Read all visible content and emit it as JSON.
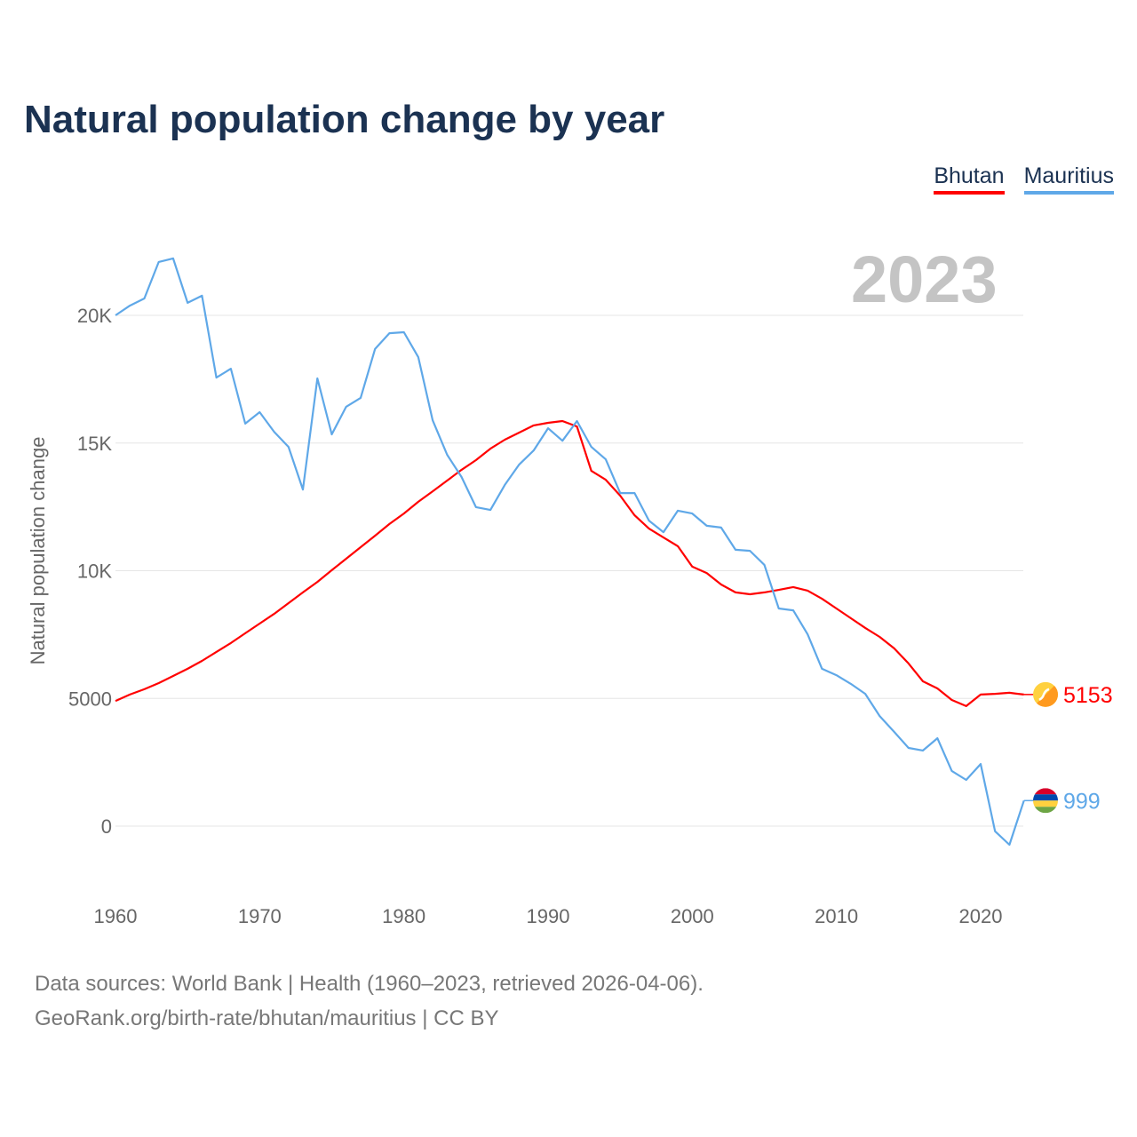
{
  "title": "Natural population change by year",
  "current_year": "2023",
  "colors": {
    "Bhutan": "#ff0000",
    "Mauritius": "#5fa8e8"
  },
  "source_line1": "Data sources: World Bank | Health (1960–2023, retrieved 2026-04-06).",
  "source_line2": "GeoRank.org/birth-rate/bhutan/mauritius | CC BY",
  "chart_data": {
    "type": "line",
    "title": "Natural population change by year",
    "xlabel": "",
    "ylabel": "Natural population change",
    "xlim": [
      1960,
      2023
    ],
    "ylim": [
      -1500,
      23000
    ],
    "x_ticks": [
      1960,
      1970,
      1980,
      1990,
      2000,
      2010,
      2020
    ],
    "x_tick_labels": [
      "1960",
      "1970",
      "1980",
      "1990",
      "2000",
      "2010",
      "2020"
    ],
    "y_ticks": [
      0,
      5000,
      10000,
      15000,
      20000
    ],
    "y_tick_labels": [
      "0",
      "5000",
      "10K",
      "15K",
      "20K"
    ],
    "grid": true,
    "legend": [
      "Bhutan",
      "Mauritius"
    ],
    "legend_position": "top-right",
    "x": [
      1960,
      1961,
      1962,
      1963,
      1964,
      1965,
      1966,
      1967,
      1968,
      1969,
      1970,
      1971,
      1972,
      1973,
      1974,
      1975,
      1976,
      1977,
      1978,
      1979,
      1980,
      1981,
      1982,
      1983,
      1984,
      1985,
      1986,
      1987,
      1988,
      1989,
      1990,
      1991,
      1992,
      1993,
      1994,
      1995,
      1996,
      1997,
      1998,
      1999,
      2000,
      2001,
      2002,
      2003,
      2004,
      2005,
      2006,
      2007,
      2008,
      2009,
      2010,
      2011,
      2012,
      2013,
      2014,
      2015,
      2016,
      2017,
      2018,
      2019,
      2020,
      2021,
      2022,
      2023
    ],
    "series": [
      {
        "name": "Bhutan",
        "end_label": "5153",
        "values": [
          4900,
          5150,
          5360,
          5600,
          5880,
          6160,
          6470,
          6820,
          7170,
          7550,
          7930,
          8310,
          8730,
          9150,
          9560,
          10020,
          10470,
          10920,
          11370,
          11830,
          12240,
          12700,
          13110,
          13530,
          13950,
          14330,
          14780,
          15130,
          15410,
          15690,
          15790,
          15860,
          15650,
          13910,
          13560,
          12940,
          12170,
          11650,
          11300,
          10960,
          10160,
          9910,
          9460,
          9150,
          9080,
          9150,
          9250,
          9360,
          9220,
          8900,
          8520,
          8140,
          7760,
          7410,
          6960,
          6370,
          5670,
          5390,
          4940,
          4700,
          5150,
          5180,
          5220,
          5153
        ]
      },
      {
        "name": "Mauritius",
        "end_label": "999",
        "values": [
          20000,
          20380,
          20660,
          22090,
          22230,
          20490,
          20770,
          17560,
          17910,
          15760,
          16210,
          15440,
          14850,
          13180,
          17530,
          15340,
          16420,
          16770,
          18680,
          19300,
          19340,
          18360,
          15890,
          14540,
          13670,
          12490,
          12380,
          13360,
          14160,
          14710,
          15580,
          15090,
          15860,
          14850,
          14360,
          13040,
          13040,
          11960,
          11510,
          12350,
          12240,
          11760,
          11690,
          10820,
          10780,
          10230,
          8520,
          8450,
          7510,
          6160,
          5910,
          5570,
          5180,
          4310,
          3690,
          3060,
          2960,
          3440,
          2160,
          1810,
          2430,
          -200,
          -730,
          999
        ]
      }
    ]
  }
}
